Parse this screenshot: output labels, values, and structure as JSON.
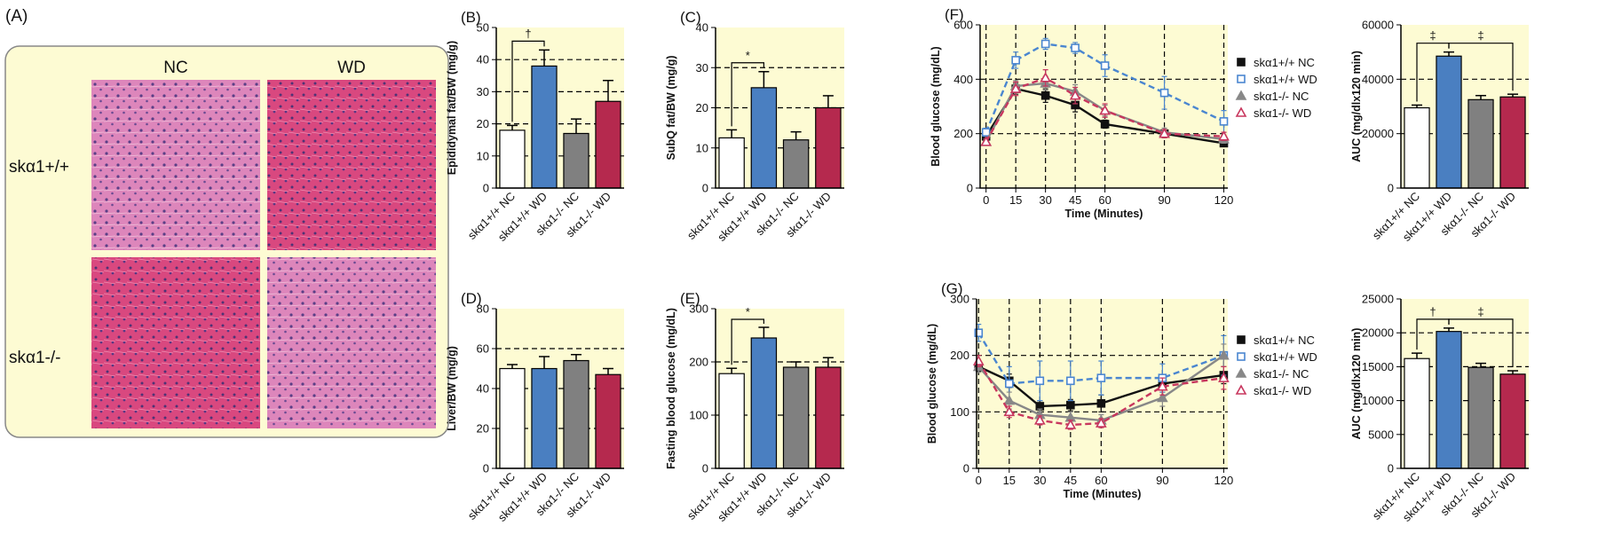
{
  "panel_a": {
    "label": "(A)",
    "columns": [
      "NC",
      "WD"
    ],
    "rows": [
      "skα1+/+",
      "skα1-/-"
    ]
  },
  "chart_data": [
    {
      "type": "bar",
      "label": "(B)",
      "y_label": "Epididymal fat/BW (mg/g)",
      "categories": [
        "skα1+/+ NC",
        "skα1+/+ WD",
        "skα1-/- NC",
        "skα1-/- WD"
      ],
      "values": [
        18,
        38,
        17,
        27
      ],
      "errors": [
        1.5,
        5,
        4.5,
        6.5
      ],
      "colors": [
        "#ffffff",
        "#4a7fc1",
        "#808080",
        "#b5294e"
      ],
      "ylim": [
        0,
        50
      ],
      "yticks": [
        0,
        10,
        20,
        30,
        40,
        50
      ],
      "grid": true,
      "annotations": [
        {
          "text": "†",
          "between": [
            "skα1+/+ NC",
            "skα1+/+ WD"
          ]
        }
      ]
    },
    {
      "type": "bar",
      "label": "(C)",
      "y_label": "SubQ fat/BW (mg/g)",
      "categories": [
        "skα1+/+ NC",
        "skα1+/+ WD",
        "skα1-/- NC",
        "skα1-/- WD"
      ],
      "values": [
        12.5,
        25,
        12,
        20
      ],
      "errors": [
        2,
        4,
        2,
        3
      ],
      "colors": [
        "#ffffff",
        "#4a7fc1",
        "#808080",
        "#b5294e"
      ],
      "ylim": [
        0,
        40
      ],
      "yticks": [
        0,
        10,
        20,
        30,
        40
      ],
      "grid": true,
      "annotations": [
        {
          "text": "*",
          "between": [
            "skα1+/+ NC",
            "skα1+/+ WD"
          ]
        }
      ]
    },
    {
      "type": "bar",
      "label": "(D)",
      "y_label": "Liver/BW (mg/g)",
      "categories": [
        "skα1+/+ NC",
        "skα1+/+ WD",
        "skα1-/- NC",
        "skα1-/- WD"
      ],
      "values": [
        50,
        50,
        54,
        47
      ],
      "errors": [
        2,
        6,
        3,
        3
      ],
      "colors": [
        "#ffffff",
        "#4a7fc1",
        "#808080",
        "#b5294e"
      ],
      "ylim": [
        0,
        80
      ],
      "yticks": [
        0,
        20,
        40,
        60,
        80
      ],
      "grid": true,
      "annotations": []
    },
    {
      "type": "bar",
      "label": "(E)",
      "y_label": "Fasting blood glucose (mg/dL)",
      "categories": [
        "skα1+/+ NC",
        "skα1+/+ WD",
        "skα1-/- NC",
        "skα1-/- WD"
      ],
      "values": [
        178,
        245,
        190,
        190
      ],
      "errors": [
        10,
        20,
        10,
        18
      ],
      "colors": [
        "#ffffff",
        "#4a7fc1",
        "#808080",
        "#b5294e"
      ],
      "ylim": [
        0,
        300
      ],
      "yticks": [
        0,
        100,
        200,
        300
      ],
      "grid": true,
      "annotations": [
        {
          "text": "*",
          "between": [
            "skα1+/+ NC",
            "skα1+/+ WD"
          ]
        }
      ]
    },
    {
      "type": "line",
      "label": "(F)",
      "y_label": "Blood glucose (mg/dL)",
      "x_label": "Time (Minutes)",
      "x": [
        0,
        15,
        30,
        45,
        60,
        90,
        120
      ],
      "xlim": [
        -3,
        122
      ],
      "xticks": [
        0,
        15,
        30,
        45,
        60,
        90,
        120
      ],
      "ylim": [
        0,
        600
      ],
      "yticks": [
        0,
        200,
        400,
        600
      ],
      "grid": true,
      "series": [
        {
          "name": "skα1+/+ NC",
          "color": "#111111",
          "marker": "square",
          "filled": true,
          "line_style": "solid",
          "values": [
            190,
            365,
            340,
            305,
            235,
            200,
            165
          ],
          "errors": [
            10,
            20,
            25,
            25,
            15,
            15,
            10
          ]
        },
        {
          "name": "skα1+/+ WD",
          "color": "#4a86d0",
          "marker": "square",
          "filled": false,
          "line_style": "dashed",
          "values": [
            205,
            470,
            530,
            515,
            450,
            350,
            245
          ],
          "errors": [
            15,
            30,
            20,
            20,
            40,
            60,
            40
          ]
        },
        {
          "name": "skα1-/- NC",
          "color": "#888888",
          "marker": "triangle",
          "filled": true,
          "line_style": "solid",
          "values": [
            170,
            375,
            385,
            355,
            285,
            205,
            180
          ],
          "errors": [
            10,
            20,
            25,
            25,
            20,
            15,
            15
          ]
        },
        {
          "name": "skα1-/- WD",
          "color": "#c8375e",
          "marker": "triangle",
          "filled": false,
          "line_style": "dashed",
          "values": [
            170,
            365,
            405,
            340,
            285,
            200,
            190
          ],
          "errors": [
            10,
            25,
            30,
            30,
            25,
            15,
            15
          ]
        }
      ]
    },
    {
      "type": "bar",
      "y_label": "AUC (mg/dlx120 min)",
      "categories": [
        "skα1+/+ NC",
        "skα1+/+ WD",
        "skα1-/- NC",
        "skα1-/- WD"
      ],
      "values": [
        29500,
        48500,
        32500,
        33500
      ],
      "errors": [
        1000,
        1500,
        1500,
        1000
      ],
      "colors": [
        "#ffffff",
        "#4a7fc1",
        "#808080",
        "#b5294e"
      ],
      "ylim": [
        0,
        60000
      ],
      "yticks": [
        0,
        20000,
        40000,
        60000
      ],
      "grid": true,
      "annotations": [
        {
          "text": "‡",
          "between": [
            "skα1+/+ NC",
            "skα1+/+ WD"
          ]
        },
        {
          "text": "‡",
          "between": [
            "skα1+/+ WD",
            "skα1-/- WD"
          ]
        }
      ]
    },
    {
      "type": "line",
      "label": "(G)",
      "y_label": "Blood glucose (mg/dL)",
      "x_label": "Time (Minutes)",
      "x": [
        0,
        15,
        30,
        45,
        60,
        90,
        120
      ],
      "xlim": [
        -1,
        122
      ],
      "xticks": [
        0,
        15,
        30,
        45,
        60,
        90,
        120
      ],
      "ylim": [
        0,
        300
      ],
      "yticks": [
        0,
        100,
        200,
        300
      ],
      "grid": true,
      "series": [
        {
          "name": "skα1+/+ NC",
          "color": "#111111",
          "marker": "square",
          "filled": true,
          "line_style": "solid",
          "values": [
            180,
            155,
            110,
            112,
            115,
            150,
            165
          ],
          "errors": [
            8,
            12,
            10,
            10,
            15,
            15,
            15
          ]
        },
        {
          "name": "skα1+/+ WD",
          "color": "#4a86d0",
          "marker": "square",
          "filled": false,
          "line_style": "dashed",
          "values": [
            240,
            150,
            155,
            155,
            160,
            160,
            200
          ],
          "errors": [
            15,
            30,
            35,
            35,
            30,
            25,
            35
          ]
        },
        {
          "name": "skα1-/- NC",
          "color": "#888888",
          "marker": "triangle",
          "filled": true,
          "line_style": "solid",
          "values": [
            180,
            120,
            95,
            90,
            85,
            125,
            200
          ],
          "errors": [
            10,
            15,
            10,
            10,
            10,
            15,
            20
          ]
        },
        {
          "name": "skα1-/- WD",
          "color": "#c8375e",
          "marker": "triangle",
          "filled": false,
          "line_style": "dashed",
          "values": [
            190,
            100,
            85,
            77,
            80,
            145,
            160
          ],
          "errors": [
            10,
            10,
            8,
            8,
            8,
            15,
            20
          ]
        }
      ]
    },
    {
      "type": "bar",
      "y_label": "AUC (mg/dlx120 min)",
      "categories": [
        "skα1+/+ NC",
        "skα1+/+ WD",
        "skα1-/- NC",
        "skα1-/- WD"
      ],
      "values": [
        16200,
        20200,
        14900,
        13900
      ],
      "errors": [
        800,
        500,
        600,
        500
      ],
      "colors": [
        "#ffffff",
        "#4a7fc1",
        "#808080",
        "#b5294e"
      ],
      "ylim": [
        0,
        25000
      ],
      "yticks": [
        0,
        5000,
        10000,
        15000,
        20000,
        25000
      ],
      "grid": true,
      "annotations": [
        {
          "text": "†",
          "between": [
            "skα1+/+ NC",
            "skα1+/+ WD"
          ]
        },
        {
          "text": "‡",
          "between": [
            "skα1+/+ WD",
            "skα1-/- WD"
          ]
        }
      ]
    }
  ]
}
